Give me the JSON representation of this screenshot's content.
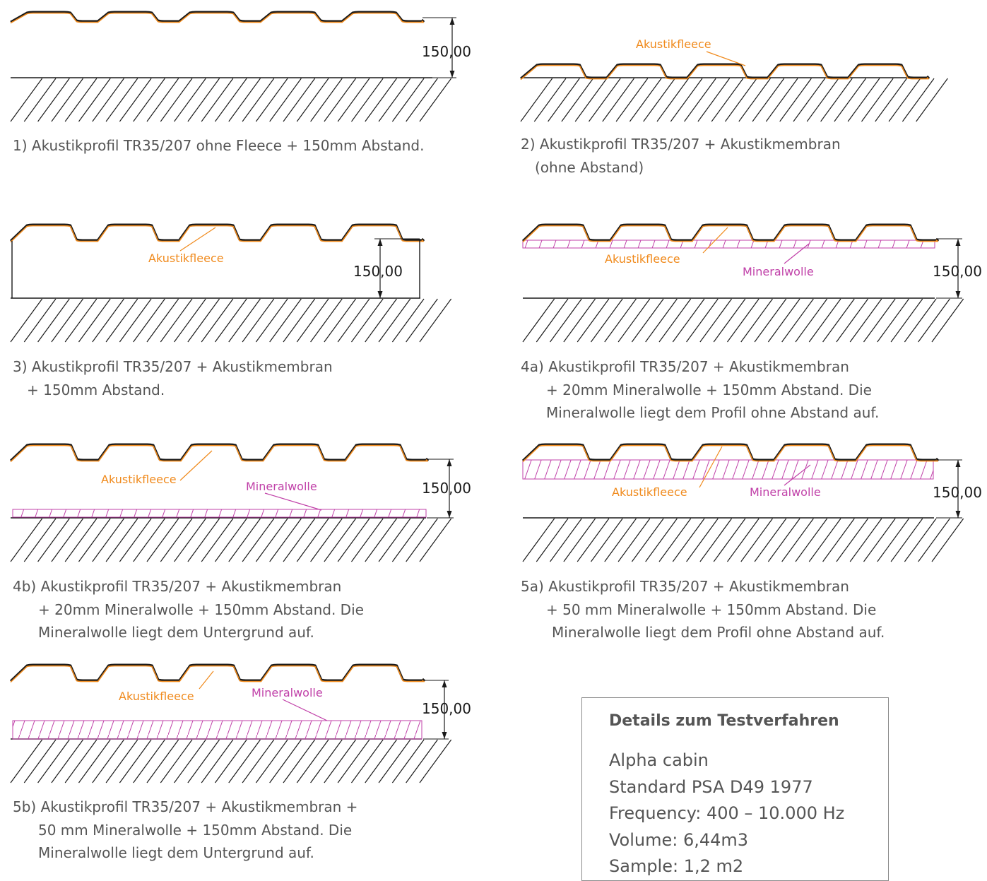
{
  "labels": {
    "fleece": "Akustikfleece",
    "wool": "Mineralwolle",
    "dimension": "150,00"
  },
  "captions": {
    "c1": [
      "1) Akustikprofil TR35/207 ohne Fleece + 150mm Abstand."
    ],
    "c2": [
      "2) Akustikprofil TR35/207 + Akustikmembran",
      "(ohne Abstand)"
    ],
    "c3": [
      "3) Akustikprofil TR35/207 + Akustikmembran",
      "+ 150mm Abstand."
    ],
    "c4a": [
      "4a) Akustikprofil TR35/207 + Akustikmembran",
      "+ 20mm Mineralwolle + 150mm Abstand. Die",
      "Mineralwolle liegt dem Profil ohne Abstand auf."
    ],
    "c4b": [
      "4b) Akustikprofil TR35/207 + Akustikmembran",
      "+ 20mm Mineralwolle + 150mm Abstand. Die",
      "Mineralwolle liegt dem Untergrund auf."
    ],
    "c5a": [
      "5a) Akustikprofil TR35/207 + Akustikmembran",
      "+ 50 mm Mineralwolle + 150mm Abstand. Die",
      "Mineralwolle liegt dem Profil ohne Abstand auf."
    ],
    "c5b": [
      "5b) Akustikprofil TR35/207 + Akustikmembran +",
      "50 mm Mineralwolle + 150mm Abstand. Die",
      "Mineralwolle liegt dem Untergrund auf."
    ]
  },
  "details": {
    "title": "Details zum Testverfahren",
    "lines": [
      "Alpha cabin",
      "Standard PSA D49 1977",
      "Frequency: 400 – 10.000 Hz",
      "Volume: 6,44m3",
      "Sample: 1,2 m2"
    ]
  },
  "colors": {
    "fleece": "#f08a1c",
    "wool": "#c040a8",
    "line": "#1a1a1a",
    "text": "#555555"
  }
}
